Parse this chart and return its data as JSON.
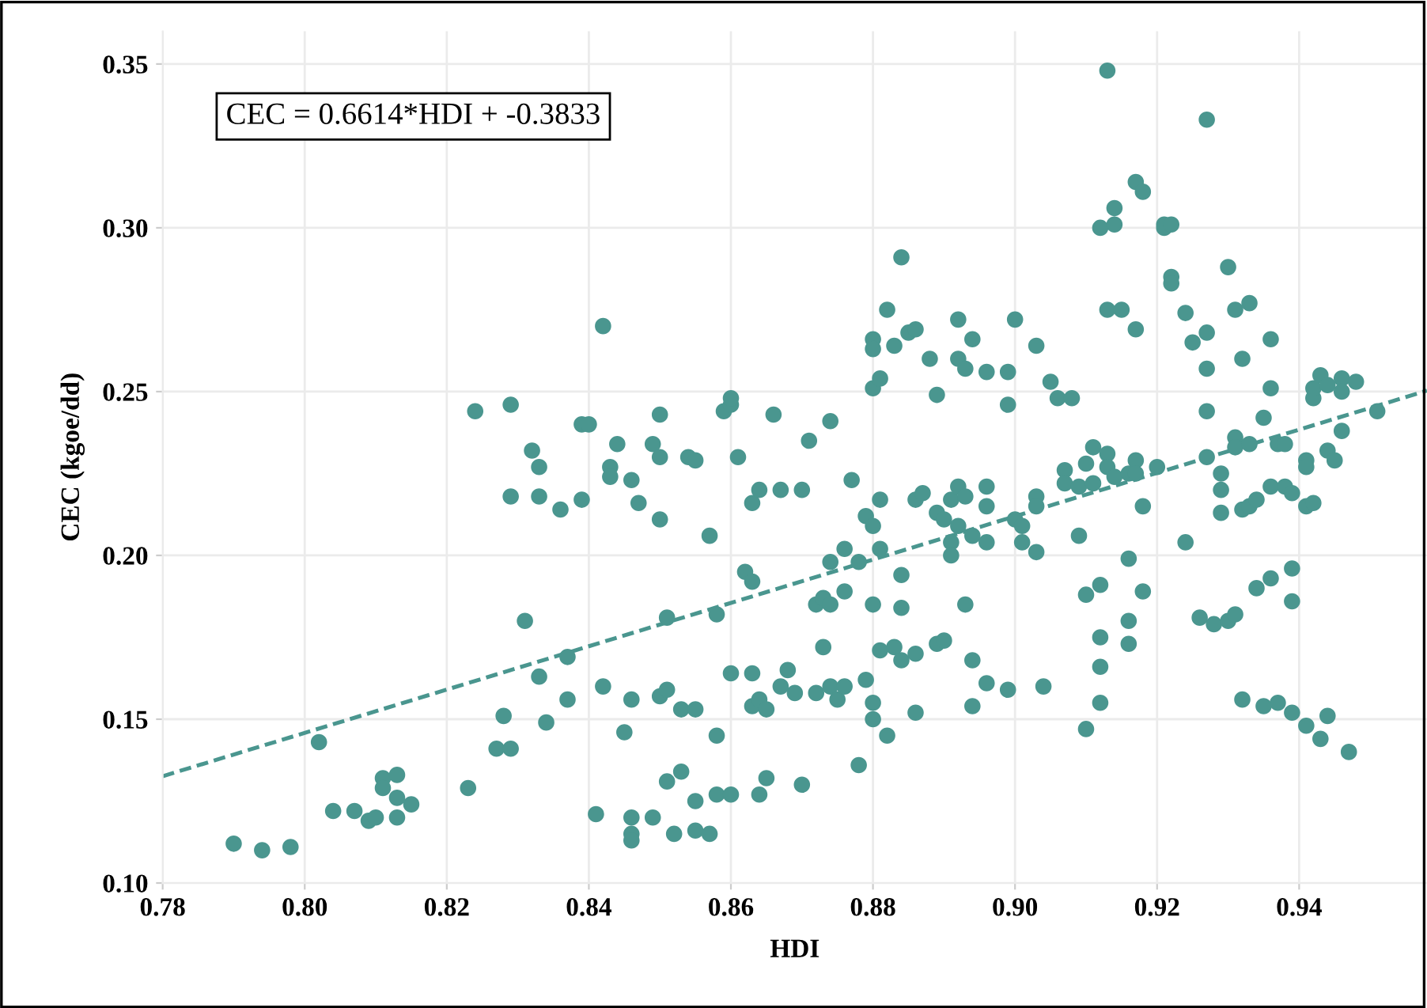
{
  "chart_data": {
    "type": "scatter",
    "xlabel": "HDI",
    "ylabel": "CEC (kgoe/dd)",
    "annotations": [
      "CEC = 0.6614*HDI + -0.3833"
    ],
    "xlim": [
      0.78,
      0.958
    ],
    "ylim": [
      0.1,
      0.36
    ],
    "xticks": [
      0.78,
      {
        "value": 0.8,
        "label": "0.80"
      },
      0.82,
      0.84,
      0.86,
      0.88,
      {
        "value": 0.9,
        "label": "0.90"
      },
      0.92,
      0.94
    ],
    "yticks": [
      {
        "value": 0.1,
        "label": "0.10"
      },
      0.15,
      {
        "value": 0.2,
        "label": "0.20"
      },
      0.25,
      {
        "value": 0.3,
        "label": "0.30"
      },
      0.35
    ],
    "grid": true,
    "series": [
      {
        "color": "#4a968f",
        "marker": "circle",
        "x": [
          0.79,
          0.794,
          0.798,
          0.802,
          0.804,
          0.807,
          0.809,
          0.81,
          0.811,
          0.811,
          0.813,
          0.813,
          0.813,
          0.815,
          0.823,
          0.824,
          0.827,
          0.828,
          0.829,
          0.829,
          0.829,
          0.831,
          0.832,
          0.833,
          0.833,
          0.833,
          0.834,
          0.836,
          0.837,
          0.837,
          0.839,
          0.84,
          0.839,
          0.841,
          0.842,
          0.842,
          0.843,
          0.843,
          0.844,
          0.845,
          0.846,
          0.846,
          0.846,
          0.846,
          0.846,
          0.847,
          0.849,
          0.849,
          0.85,
          0.85,
          0.85,
          0.85,
          0.851,
          0.851,
          0.851,
          0.852,
          0.853,
          0.853,
          0.854,
          0.855,
          0.855,
          0.855,
          0.855,
          0.857,
          0.857,
          0.858,
          0.858,
          0.858,
          0.859,
          0.86,
          0.86,
          0.86,
          0.86,
          0.861,
          0.862,
          0.863,
          0.863,
          0.864,
          0.863,
          0.863,
          0.864,
          0.865,
          0.864,
          0.865,
          0.866,
          0.867,
          0.867,
          0.868,
          0.869,
          0.87,
          0.87,
          0.871,
          0.872,
          0.872,
          0.873,
          0.873,
          0.874,
          0.874,
          0.874,
          0.874,
          0.875,
          0.876,
          0.876,
          0.876,
          0.877,
          0.878,
          0.878,
          0.879,
          0.879,
          0.88,
          0.88,
          0.88,
          0.88,
          0.88,
          0.88,
          0.88,
          0.881,
          0.881,
          0.881,
          0.881,
          0.882,
          0.882,
          0.883,
          0.883,
          0.884,
          0.884,
          0.884,
          0.884,
          0.885,
          0.886,
          0.886,
          0.886,
          0.886,
          0.887,
          0.888,
          0.889,
          0.889,
          0.889,
          0.89,
          0.89,
          0.891,
          0.891,
          0.891,
          0.892,
          0.892,
          0.892,
          0.892,
          0.893,
          0.893,
          0.893,
          0.894,
          0.894,
          0.894,
          0.894,
          0.896,
          0.896,
          0.896,
          0.896,
          0.896,
          0.899,
          0.899,
          0.899,
          0.9,
          0.9,
          0.901,
          0.901,
          0.903,
          0.903,
          0.903,
          0.903,
          0.904,
          0.905,
          0.906,
          0.907,
          0.907,
          0.908,
          0.909,
          0.909,
          0.91,
          0.91,
          0.91,
          0.911,
          0.911,
          0.912,
          0.912,
          0.912,
          0.912,
          0.912,
          0.913,
          0.913,
          0.913,
          0.913,
          0.914,
          0.914,
          0.914,
          0.915,
          0.916,
          0.916,
          0.916,
          0.916,
          0.917,
          0.917,
          0.917,
          0.917,
          0.918,
          0.918,
          0.918,
          0.92,
          0.921,
          0.921,
          0.922,
          0.922,
          0.922,
          0.924,
          0.924,
          0.925,
          0.926,
          0.927,
          0.927,
          0.927,
          0.927,
          0.927,
          0.928,
          0.929,
          0.929,
          0.929,
          0.93,
          0.93,
          0.931,
          0.931,
          0.931,
          0.931,
          0.932,
          0.932,
          0.932,
          0.933,
          0.933,
          0.933,
          0.934,
          0.934,
          0.935,
          0.935,
          0.936,
          0.936,
          0.936,
          0.936,
          0.937,
          0.937,
          0.938,
          0.938,
          0.939,
          0.939,
          0.939,
          0.939,
          0.941,
          0.941,
          0.941,
          0.941,
          0.942,
          0.942,
          0.942,
          0.943,
          0.943,
          0.944,
          0.944,
          0.944,
          0.945,
          0.946,
          0.946,
          0.946,
          0.947,
          0.948,
          0.951
        ],
        "values": [
          0.112,
          0.11,
          0.111,
          0.143,
          0.122,
          0.122,
          0.119,
          0.12,
          0.132,
          0.129,
          0.133,
          0.126,
          0.12,
          0.124,
          0.129,
          0.244,
          0.141,
          0.151,
          0.141,
          0.246,
          0.218,
          0.18,
          0.232,
          0.227,
          0.218,
          0.163,
          0.149,
          0.214,
          0.169,
          0.156,
          0.24,
          0.24,
          0.217,
          0.121,
          0.16,
          0.27,
          0.227,
          0.224,
          0.234,
          0.146,
          0.223,
          0.156,
          0.12,
          0.115,
          0.113,
          0.216,
          0.234,
          0.12,
          0.243,
          0.23,
          0.211,
          0.157,
          0.159,
          0.131,
          0.181,
          0.115,
          0.134,
          0.153,
          0.23,
          0.229,
          0.153,
          0.125,
          0.116,
          0.115,
          0.206,
          0.182,
          0.145,
          0.127,
          0.244,
          0.246,
          0.248,
          0.164,
          0.127,
          0.23,
          0.195,
          0.192,
          0.216,
          0.22,
          0.164,
          0.154,
          0.156,
          0.153,
          0.127,
          0.132,
          0.243,
          0.22,
          0.16,
          0.165,
          0.158,
          0.22,
          0.13,
          0.235,
          0.158,
          0.185,
          0.172,
          0.187,
          0.241,
          0.198,
          0.185,
          0.16,
          0.156,
          0.202,
          0.189,
          0.16,
          0.223,
          0.198,
          0.136,
          0.212,
          0.162,
          0.209,
          0.185,
          0.155,
          0.15,
          0.266,
          0.263,
          0.251,
          0.254,
          0.217,
          0.202,
          0.171,
          0.275,
          0.145,
          0.264,
          0.172,
          0.291,
          0.194,
          0.184,
          0.168,
          0.268,
          0.269,
          0.217,
          0.17,
          0.152,
          0.219,
          0.26,
          0.249,
          0.213,
          0.173,
          0.174,
          0.211,
          0.204,
          0.2,
          0.217,
          0.272,
          0.26,
          0.221,
          0.209,
          0.257,
          0.218,
          0.185,
          0.266,
          0.206,
          0.168,
          0.154,
          0.256,
          0.221,
          0.215,
          0.204,
          0.161,
          0.256,
          0.246,
          0.159,
          0.272,
          0.211,
          0.209,
          0.204,
          0.264,
          0.218,
          0.215,
          0.201,
          0.16,
          0.253,
          0.248,
          0.226,
          0.222,
          0.248,
          0.206,
          0.221,
          0.228,
          0.188,
          0.147,
          0.233,
          0.222,
          0.3,
          0.191,
          0.175,
          0.166,
          0.155,
          0.348,
          0.275,
          0.231,
          0.227,
          0.306,
          0.301,
          0.224,
          0.275,
          0.225,
          0.199,
          0.18,
          0.173,
          0.314,
          0.269,
          0.229,
          0.225,
          0.311,
          0.215,
          0.189,
          0.227,
          0.301,
          0.3,
          0.301,
          0.285,
          0.283,
          0.274,
          0.204,
          0.265,
          0.181,
          0.333,
          0.268,
          0.257,
          0.244,
          0.23,
          0.179,
          0.225,
          0.22,
          0.213,
          0.288,
          0.18,
          0.275,
          0.236,
          0.233,
          0.182,
          0.26,
          0.214,
          0.156,
          0.215,
          0.234,
          0.277,
          0.217,
          0.19,
          0.242,
          0.154,
          0.266,
          0.251,
          0.221,
          0.193,
          0.155,
          0.234,
          0.234,
          0.221,
          0.219,
          0.196,
          0.186,
          0.152,
          0.229,
          0.227,
          0.215,
          0.148,
          0.216,
          0.248,
          0.251,
          0.255,
          0.144,
          0.252,
          0.232,
          0.151,
          0.229,
          0.254,
          0.25,
          0.238,
          0.14,
          0.253,
          0.244
        ]
      },
      {
        "type": "line",
        "line_style": "dashed",
        "marker": "none",
        "color": "#4a968f",
        "x": [
          0.78,
          0.958
        ],
        "values": [
          0.1326,
          0.2503
        ]
      }
    ]
  }
}
